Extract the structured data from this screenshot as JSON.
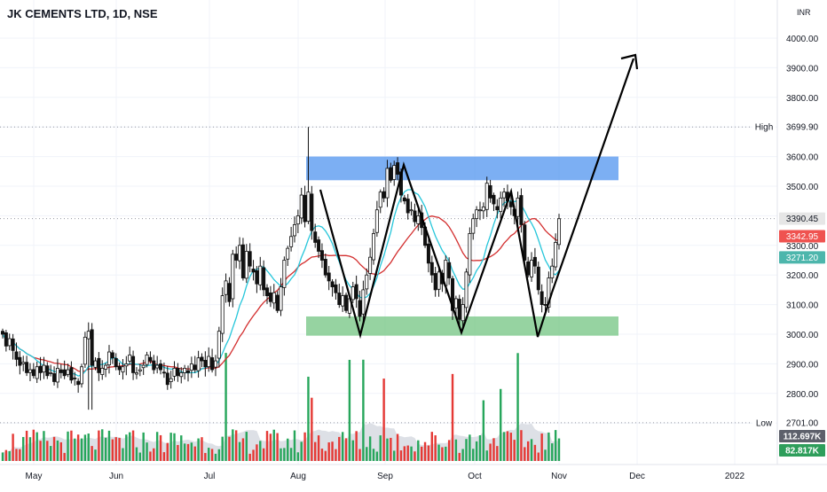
{
  "chart_data": {
    "type": "candlestick",
    "title": "JK CEMENTS LTD, 1D, NSE",
    "currency": "INR",
    "ylim": [
      2640,
      4120
    ],
    "y_ticks": [
      2700,
      2800,
      2900,
      3000,
      3100,
      3200,
      3300,
      3400,
      3500,
      3600,
      3700,
      3800,
      3900,
      4000
    ],
    "y_tick_labels": [
      "2700.00",
      "2800.00",
      "2900.00",
      "3000.00",
      "3100.00",
      "3200.00",
      "3300.00",
      "3400.00",
      "3500.00",
      "3600.00",
      "3700.00",
      "3800.00",
      "3900.00",
      "4000.00"
    ],
    "x_labels": [
      "May",
      "Jun",
      "Jul",
      "Aug",
      "Sep",
      "Oct",
      "Nov",
      "Dec",
      "2022"
    ],
    "high_value": 3699.9,
    "high_label": "High",
    "high_value_label": "3699.90",
    "low_value": 2701.0,
    "low_label": "Low",
    "low_value_label": "2701.00",
    "last_price": 3390.45,
    "last_price_label": "3390.45",
    "ma_long_value": 3342.95,
    "ma_long_label": "3342.95",
    "ma_short_value": 3271.2,
    "ma_short_label": "3271.20",
    "volume_labels": [
      "112.697K",
      "82.817K"
    ],
    "colors": {
      "up": "#26a69a",
      "down": "#ef5350",
      "vol_up": "#26a65b",
      "vol_down": "#e53935",
      "ma_short": "#26c6da",
      "ma_long": "#d32f2f",
      "resistance_zone": "#5b9bf0",
      "support_zone": "#7cc88a",
      "pattern_line": "#000000"
    },
    "closes": [
      3000,
      2960,
      2985,
      2945,
      2915,
      2895,
      2905,
      2870,
      2880,
      2860,
      2890,
      2870,
      2895,
      2860,
      2870,
      2840,
      2885,
      2870,
      2860,
      2880,
      2845,
      2850,
      2830,
      2890,
      2990,
      3010,
      2895,
      2910,
      2870,
      2885,
      2895,
      2940,
      2920,
      2890,
      2880,
      2890,
      2900,
      2930,
      2870,
      2870,
      2880,
      2895,
      2930,
      2910,
      2880,
      2895,
      2880,
      2870,
      2830,
      2850,
      2885,
      2860,
      2870,
      2885,
      2870,
      2900,
      2880,
      2920,
      2910,
      2890,
      2925,
      2880,
      2910,
      3010,
      3130,
      3180,
      3110,
      3270,
      3250,
      3300,
      3190,
      3280,
      3230,
      3210,
      3170,
      3230,
      3150,
      3130,
      3110,
      3140,
      3080,
      3160,
      3250,
      3290,
      3330,
      3370,
      3400,
      3470,
      3380,
      3480,
      3350,
      3310,
      3280,
      3250,
      3200,
      3180,
      3160,
      3140,
      3100,
      3130,
      3080,
      3120,
      3160,
      3120,
      3060,
      3150,
      3200,
      3260,
      3340,
      3420,
      3480,
      3460,
      3560,
      3520,
      3570,
      3540,
      3470,
      3450,
      3410,
      3420,
      3380,
      3400,
      3360,
      3300,
      3240,
      3200,
      3150,
      3210,
      3170,
      3250,
      3190,
      3080,
      3120,
      3050,
      3100,
      3210,
      3340,
      3390,
      3420,
      3420,
      3430,
      3510,
      3460,
      3440,
      3420,
      3460,
      3480,
      3450,
      3430,
      3400,
      3460,
      3370,
      3250,
      3200,
      3250,
      3230,
      3150,
      3100,
      3100,
      3190,
      3230,
      3310,
      3390
    ]
  }
}
